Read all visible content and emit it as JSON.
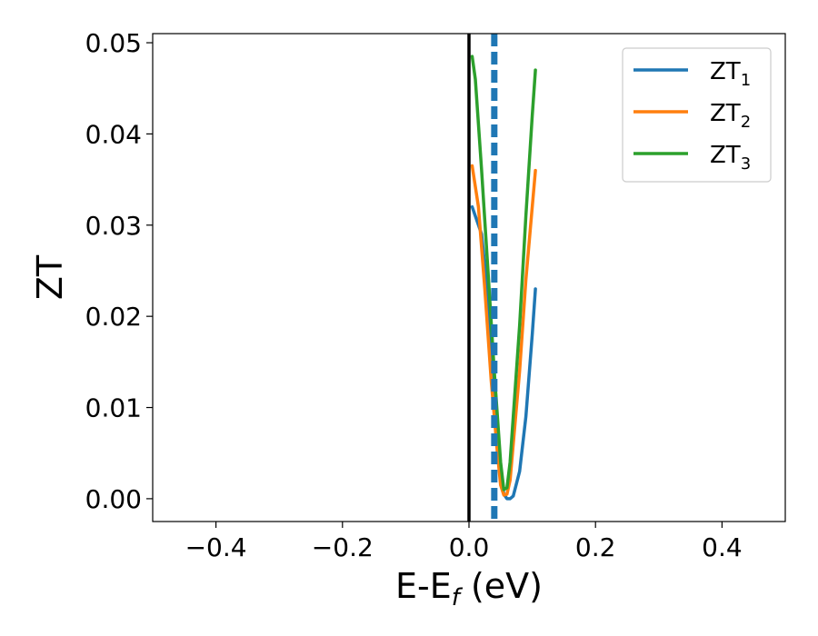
{
  "chart_data": {
    "type": "line",
    "xlabel_main": "E-E",
    "xlabel_sub": "f",
    "xlabel_unit": " (eV)",
    "ylabel": "ZT",
    "xlim": [
      -0.5,
      0.5
    ],
    "ylim": [
      -0.0025,
      0.051
    ],
    "xticks": [
      -0.4,
      -0.2,
      0.0,
      0.2,
      0.4
    ],
    "xtick_labels": [
      "−0.4",
      "−0.2",
      "0.0",
      "0.2",
      "0.4"
    ],
    "yticks": [
      0.0,
      0.01,
      0.02,
      0.03,
      0.04,
      0.05
    ],
    "ytick_labels": [
      "0.00",
      "0.01",
      "0.02",
      "0.03",
      "0.04",
      "0.05"
    ],
    "grid": false,
    "legend_position": "top-right",
    "vertical_lines": [
      {
        "x": 0.0,
        "color": "#000000",
        "style": "solid"
      },
      {
        "x": 0.04,
        "color": "#1f77b4",
        "style": "dashed"
      }
    ],
    "series": [
      {
        "name_main": "ZT",
        "name_sub": "1",
        "color": "#1f77b4",
        "x": [
          0.005,
          0.02,
          0.03,
          0.04,
          0.05,
          0.055,
          0.06,
          0.065,
          0.07,
          0.08,
          0.09,
          0.1,
          0.105
        ],
        "y": [
          0.032,
          0.029,
          0.022,
          0.012,
          0.003,
          0.0005,
          0.0,
          0.0,
          0.0003,
          0.003,
          0.009,
          0.018,
          0.023
        ]
      },
      {
        "name_main": "ZT",
        "name_sub": "2",
        "color": "#ff7f0e",
        "x": [
          0.005,
          0.015,
          0.025,
          0.035,
          0.045,
          0.05,
          0.055,
          0.06,
          0.065,
          0.07,
          0.08,
          0.09,
          0.1,
          0.105
        ],
        "y": [
          0.0365,
          0.032,
          0.023,
          0.013,
          0.005,
          0.0015,
          0.0004,
          0.0005,
          0.002,
          0.006,
          0.014,
          0.024,
          0.032,
          0.036
        ]
      },
      {
        "name_main": "ZT",
        "name_sub": "3",
        "color": "#2ca02c",
        "x": [
          0.005,
          0.01,
          0.02,
          0.03,
          0.04,
          0.05,
          0.055,
          0.06,
          0.065,
          0.07,
          0.08,
          0.09,
          0.1,
          0.105
        ],
        "y": [
          0.0485,
          0.046,
          0.036,
          0.025,
          0.014,
          0.004,
          0.001,
          0.0012,
          0.004,
          0.009,
          0.019,
          0.031,
          0.042,
          0.047
        ]
      }
    ]
  }
}
